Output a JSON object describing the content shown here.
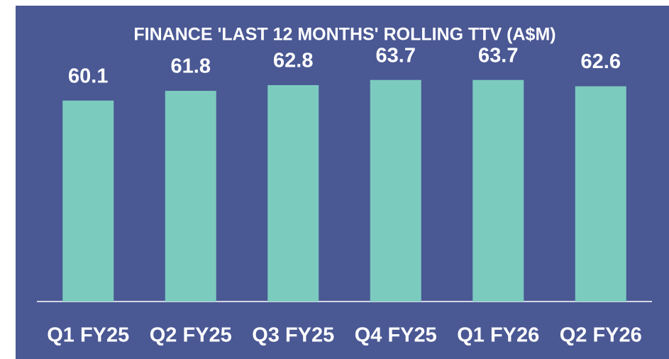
{
  "chart_data": {
    "type": "bar",
    "title": "FINANCE 'LAST 12 MONTHS' ROLLING TTV (A$M)",
    "categories": [
      "Q1 FY25",
      "Q2 FY25",
      "Q3 FY25",
      "Q4 FY25",
      "Q1 FY26",
      "Q2 FY26"
    ],
    "values": [
      60.1,
      61.8,
      62.8,
      63.7,
      63.7,
      62.6
    ],
    "color": "#7ccbbf",
    "ylim": [
      25,
      68
    ]
  }
}
